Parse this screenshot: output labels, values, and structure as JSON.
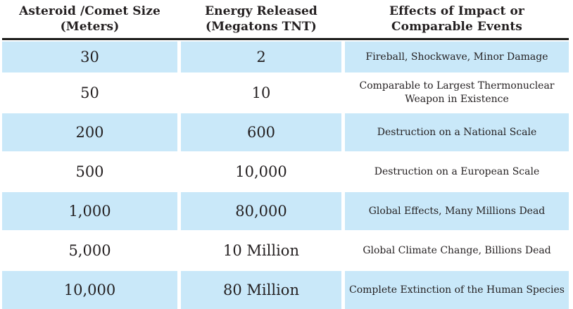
{
  "chart_data": {
    "type": "table",
    "columns": [
      "Asteroid /Comet Size (Meters)",
      "Energy Released (Megatons TNT)",
      "Effects of Impact or Comparable Events"
    ],
    "rows": [
      [
        "30",
        "2",
        "Fireball, Shockwave, Minor Damage"
      ],
      [
        "50",
        "10",
        "Comparable to Largest Thermonuclear Weapon in Existence"
      ],
      [
        "200",
        "600",
        "Destruction on a National Scale"
      ],
      [
        "500",
        "10,000",
        "Destruction on a European Scale"
      ],
      [
        "1,000",
        "80,000",
        "Global Effects, Many Millions Dead"
      ],
      [
        "5,000",
        "10 Million",
        "Global Climate Change, Billions Dead"
      ],
      [
        "10,000",
        "80 Million",
        "Complete Extinction of the Human Species"
      ]
    ]
  },
  "display": {
    "headers": {
      "size": "Asteroid /Comet Size\n(Meters)",
      "energy": "Energy Released\n(Megatons TNT)",
      "effects": "Effects of Impact or\nComparable Events"
    },
    "colors": {
      "row_highlight": "#c9e8f9",
      "header_rule": "#1d1d1b",
      "text": "#231f20",
      "background": "#ffffff"
    }
  }
}
